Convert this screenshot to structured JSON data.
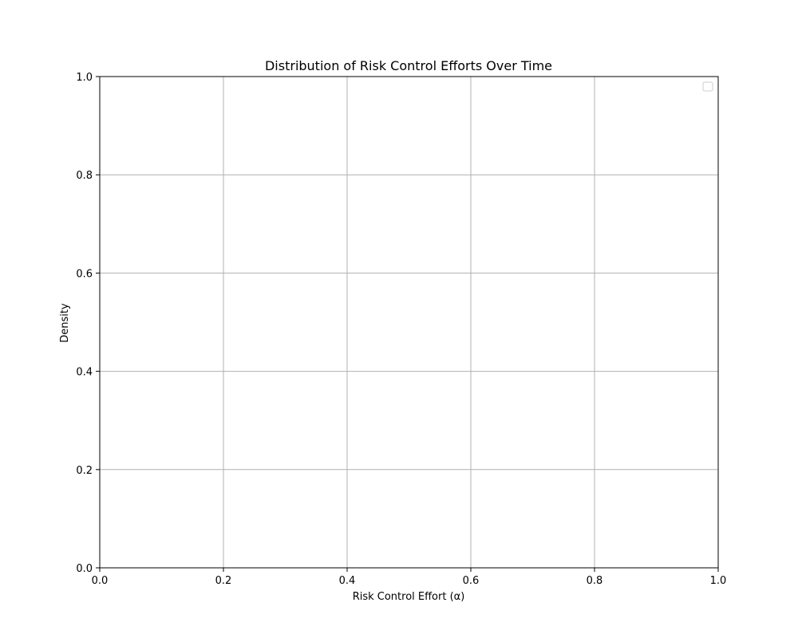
{
  "chart_data": {
    "type": "line",
    "title": "Distribution of Risk Control Efforts Over Time",
    "xlabel": "Risk Control Effort (α)",
    "ylabel": "Density",
    "xlim": [
      0.0,
      1.0
    ],
    "ylim": [
      0.0,
      1.0
    ],
    "x_ticks": [
      "0.0",
      "0.2",
      "0.4",
      "0.6",
      "0.8",
      "1.0"
    ],
    "y_ticks": [
      "0.0",
      "0.2",
      "0.4",
      "0.6",
      "0.8",
      "1.0"
    ],
    "grid": true,
    "legend": {
      "placement": "top-right",
      "entries": []
    },
    "series": [],
    "colors": {
      "grid": "#b0b0b0",
      "axes": "#000000",
      "legend_border": "#cccccc"
    }
  }
}
